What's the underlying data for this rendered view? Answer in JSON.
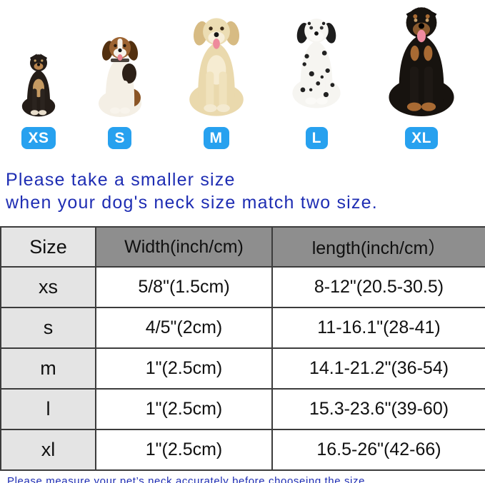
{
  "dogs": {
    "badge_color": "#27a1ef",
    "items": [
      {
        "label": "XS",
        "breed_depicted": "black-and-tan-puppy"
      },
      {
        "label": "S",
        "breed_depicted": "beagle"
      },
      {
        "label": "M",
        "breed_depicted": "golden-retriever"
      },
      {
        "label": "L",
        "breed_depicted": "dalmatian"
      },
      {
        "label": "XL",
        "breed_depicted": "rottweiler"
      }
    ]
  },
  "notes": {
    "text_color": "#1e2db3",
    "top_line1": "Please take a smaller size",
    "top_line2": "when your dog's neck size match two size.",
    "bottom": "Please measure your pet’s neck accurately before chooseing the size."
  },
  "table": {
    "header_bg_dark": "#8e8e8e",
    "size_col_bg": "#e4e4e4",
    "headers": [
      "Size",
      "Width(inch/cm)",
      "length(inch/cm）"
    ],
    "rows": [
      [
        "xs",
        "5/8\"(1.5cm)",
        "8-12\"(20.5-30.5)"
      ],
      [
        "s",
        "4/5\"(2cm)",
        "11-16.1\"(28-41)"
      ],
      [
        "m",
        "1\"(2.5cm)",
        "14.1-21.2\"(36-54)"
      ],
      [
        "l",
        "1\"(2.5cm)",
        "15.3-23.6\"(39-60)"
      ],
      [
        "xl",
        "1\"(2.5cm)",
        "16.5-26\"(42-66)"
      ]
    ]
  }
}
